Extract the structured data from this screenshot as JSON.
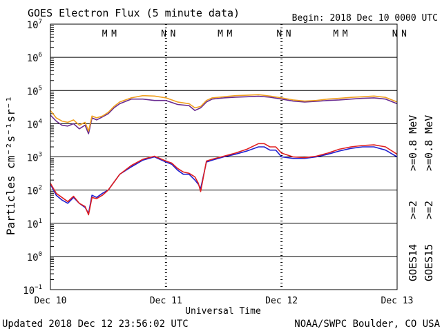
{
  "header": {
    "title": "GOES Electron Flux (5 minute data)",
    "begin": "Begin: 2018 Dec 10 0000 UTC"
  },
  "footer": {
    "updated": "Updated 2018 Dec 12 23:56:02 UTC",
    "source": "NOAA/SWPC Boulder, CO USA"
  },
  "chart_data": {
    "type": "line",
    "title": "GOES Electron Flux (5 minute data)",
    "xlabel": "Universal Time",
    "ylabel": "Particles cm⁻²s⁻¹sr⁻¹",
    "x_unit": "days since 2018 Dec 10 0000 UTC",
    "x_range": [
      0,
      3
    ],
    "x_ticks": [
      {
        "x": 0,
        "label": "Dec 10"
      },
      {
        "x": 1,
        "label": "Dec 11"
      },
      {
        "x": 2,
        "label": "Dec 12"
      },
      {
        "x": 3,
        "label": "Dec 13"
      }
    ],
    "y_scale": "log",
    "ylim": [
      0.1,
      10000000
    ],
    "y_ticks": [
      {
        "exp": 7,
        "label": "10",
        "sup": "7"
      },
      {
        "exp": 6,
        "label": "10",
        "sup": "6"
      },
      {
        "exp": 5,
        "label": "10",
        "sup": "5"
      },
      {
        "exp": 4,
        "label": "10",
        "sup": "4"
      },
      {
        "exp": 3,
        "label": "10",
        "sup": "3"
      },
      {
        "exp": 2,
        "label": "10",
        "sup": "2"
      },
      {
        "exp": 1,
        "label": "10",
        "sup": "1"
      },
      {
        "exp": 0,
        "label": "10",
        "sup": "0"
      },
      {
        "exp": -1,
        "label": "10",
        "sup": "−1"
      }
    ],
    "threshold": {
      "y": 1000,
      "style": "dashed"
    },
    "grid": "horizontal at each decade",
    "markers": [
      {
        "x": 0.47,
        "text": "M",
        "color": "#2020d0"
      },
      {
        "x": 0.55,
        "text": "M",
        "color": "#e02020"
      },
      {
        "x": 0.98,
        "text": "N",
        "color": "#2020d0"
      },
      {
        "x": 1.06,
        "text": "N",
        "color": "#e02020"
      },
      {
        "x": 1.47,
        "text": "M",
        "color": "#2020d0"
      },
      {
        "x": 1.55,
        "text": "M",
        "color": "#e02020"
      },
      {
        "x": 1.98,
        "text": "N",
        "color": "#2020d0"
      },
      {
        "x": 2.06,
        "text": "N",
        "color": "#e02020"
      },
      {
        "x": 2.47,
        "text": "M",
        "color": "#2020d0"
      },
      {
        "x": 2.55,
        "text": "M",
        "color": "#e02020"
      },
      {
        "x": 2.98,
        "text": "N",
        "color": "#2020d0"
      },
      {
        "x": 3.06,
        "text": "N",
        "color": "#e02020"
      }
    ],
    "legend": {
      "placement": "right, vertical",
      "satellites": [
        "GOES14",
        "GOES15"
      ],
      "entries": [
        {
          "text": ">=2",
          "color": "#2020d0"
        },
        {
          "text": ">=2",
          "color": "#e02020"
        },
        {
          "text": ">=0.8 MeV",
          "color": "#6a2c91"
        },
        {
          "text": ">=0.8 MeV",
          "color": "#f0a020"
        }
      ]
    },
    "series": [
      {
        "name": "GOES14 >=0.8 MeV",
        "color": "#6a2c91",
        "x": [
          0,
          0.05,
          0.1,
          0.15,
          0.2,
          0.25,
          0.3,
          0.33,
          0.36,
          0.4,
          0.45,
          0.5,
          0.55,
          0.6,
          0.7,
          0.8,
          0.9,
          1.0,
          1.1,
          1.2,
          1.25,
          1.3,
          1.35,
          1.4,
          1.5,
          1.6,
          1.7,
          1.8,
          1.9,
          2.0,
          2.1,
          2.2,
          2.3,
          2.4,
          2.5,
          2.6,
          2.7,
          2.8,
          2.9,
          3.0
        ],
        "y": [
          18000,
          12000,
          9000,
          8500,
          10000,
          7000,
          9000,
          5000,
          15000,
          13000,
          16000,
          20000,
          30000,
          40000,
          55000,
          55000,
          50000,
          50000,
          38000,
          35000,
          25000,
          30000,
          45000,
          55000,
          60000,
          63000,
          65000,
          67000,
          63000,
          55000,
          48000,
          45000,
          47000,
          50000,
          52000,
          55000,
          58000,
          60000,
          55000,
          40000
        ]
      },
      {
        "name": "GOES15 >=0.8 MeV",
        "color": "#f0a020",
        "x": [
          0,
          0.05,
          0.1,
          0.15,
          0.2,
          0.25,
          0.3,
          0.33,
          0.36,
          0.4,
          0.45,
          0.5,
          0.55,
          0.6,
          0.7,
          0.8,
          0.9,
          1.0,
          1.1,
          1.2,
          1.25,
          1.3,
          1.35,
          1.4,
          1.5,
          1.6,
          1.7,
          1.8,
          1.9,
          2.0,
          2.1,
          2.2,
          2.3,
          2.4,
          2.5,
          2.6,
          2.7,
          2.8,
          2.9,
          3.0
        ],
        "y": [
          25000,
          15000,
          12000,
          11000,
          13000,
          9000,
          11000,
          6000,
          17000,
          15000,
          17000,
          22000,
          33000,
          45000,
          60000,
          70000,
          68000,
          60000,
          45000,
          40000,
          30000,
          33000,
          50000,
          60000,
          65000,
          70000,
          72000,
          75000,
          68000,
          60000,
          52000,
          48000,
          50000,
          55000,
          58000,
          62000,
          65000,
          68000,
          62000,
          45000
        ]
      },
      {
        "name": "GOES14 >=2 MeV",
        "color": "#2020d0",
        "x": [
          0,
          0.05,
          0.1,
          0.15,
          0.2,
          0.25,
          0.3,
          0.33,
          0.36,
          0.4,
          0.45,
          0.5,
          0.6,
          0.7,
          0.8,
          0.9,
          1.0,
          1.05,
          1.1,
          1.15,
          1.2,
          1.25,
          1.28,
          1.3,
          1.35,
          1.4,
          1.5,
          1.6,
          1.7,
          1.8,
          1.85,
          1.9,
          1.95,
          2.0,
          2.1,
          2.2,
          2.3,
          2.4,
          2.5,
          2.6,
          2.7,
          2.8,
          2.9,
          3.0
        ],
        "y": [
          150,
          70,
          50,
          40,
          60,
          40,
          30,
          20,
          70,
          60,
          80,
          100,
          300,
          500,
          800,
          1000,
          700,
          600,
          400,
          300,
          300,
          200,
          150,
          110,
          700,
          800,
          1000,
          1200,
          1500,
          2000,
          2000,
          1600,
          1600,
          1000,
          900,
          900,
          1000,
          1200,
          1500,
          1800,
          2000,
          2000,
          1600,
          1000
        ]
      },
      {
        "name": "GOES15 >=2 MeV",
        "color": "#e02020",
        "x": [
          0,
          0.05,
          0.1,
          0.15,
          0.2,
          0.25,
          0.3,
          0.33,
          0.36,
          0.4,
          0.45,
          0.5,
          0.6,
          0.7,
          0.8,
          0.9,
          1.0,
          1.05,
          1.1,
          1.15,
          1.2,
          1.25,
          1.28,
          1.3,
          1.35,
          1.4,
          1.5,
          1.6,
          1.7,
          1.8,
          1.85,
          1.9,
          1.95,
          2.0,
          2.1,
          2.2,
          2.3,
          2.4,
          2.5,
          2.6,
          2.7,
          2.8,
          2.9,
          3.0
        ],
        "y": [
          160,
          80,
          60,
          45,
          65,
          40,
          32,
          18,
          60,
          55,
          70,
          100,
          300,
          550,
          850,
          1050,
          750,
          650,
          450,
          350,
          320,
          250,
          160,
          90,
          750,
          850,
          1050,
          1300,
          1700,
          2500,
          2500,
          2000,
          2000,
          1300,
          1000,
          950,
          1050,
          1300,
          1700,
          2000,
          2200,
          2300,
          2000,
          1200
        ]
      }
    ]
  }
}
